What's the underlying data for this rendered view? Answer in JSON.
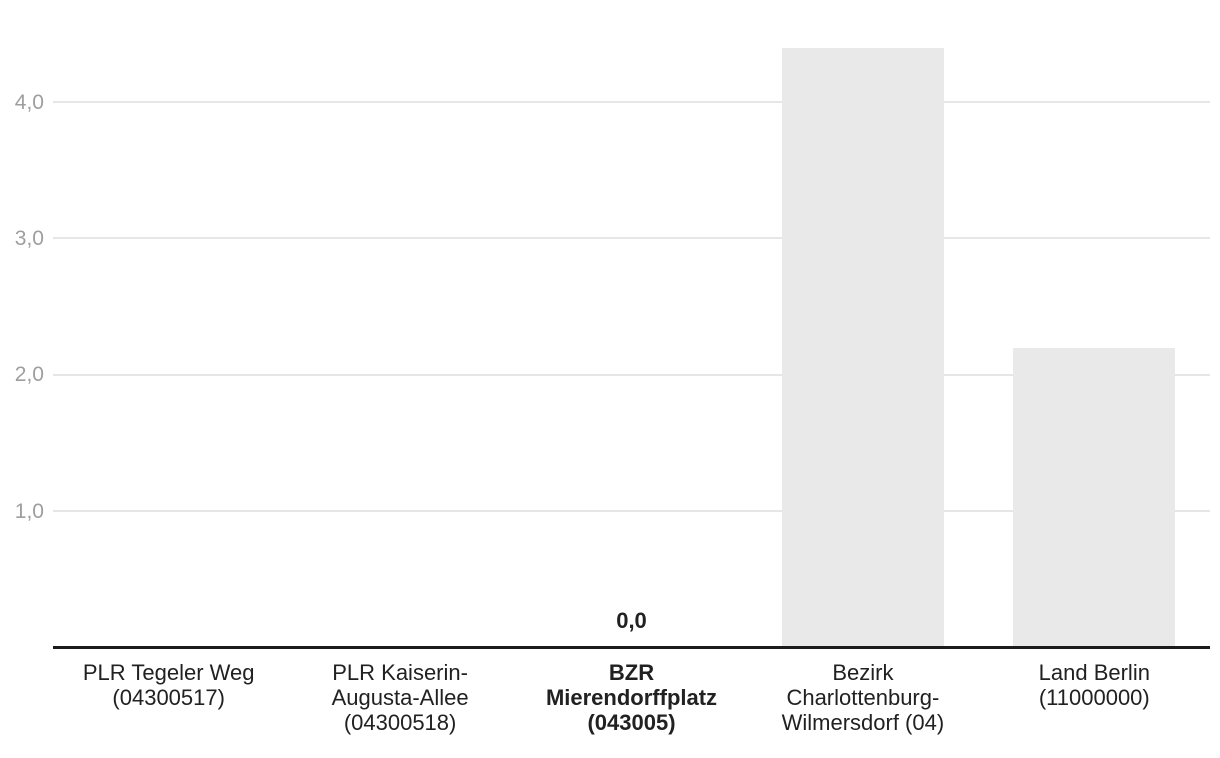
{
  "chart_data": {
    "type": "bar",
    "title": "",
    "xlabel": "",
    "ylabel": "",
    "legend": "none",
    "grid": true,
    "decimal_separator": ",",
    "ylim": [
      0,
      4.55
    ],
    "y_ticks": [
      {
        "value": 1.0,
        "label": "1,0"
      },
      {
        "value": 2.0,
        "label": "2,0"
      },
      {
        "value": 3.0,
        "label": "3,0"
      },
      {
        "value": 4.0,
        "label": "4,0"
      }
    ],
    "categories": [
      {
        "label": "PLR Tegeler Weg (04300517)",
        "lines": [
          "PLR Tegeler Weg",
          "(04300517)"
        ],
        "bold": false
      },
      {
        "label": "PLR Kaiserin-Augusta-Allee (04300518)",
        "lines": [
          "PLR Kaiserin-",
          "Augusta-Allee",
          "(04300518)"
        ],
        "bold": false
      },
      {
        "label": "BZR Mierendorffplatz (043005)",
        "lines": [
          "BZR",
          "Mierendorffplatz",
          "(043005)"
        ],
        "bold": true
      },
      {
        "label": "Bezirk Charlottenburg-Wilmersdorf (04)",
        "lines": [
          "Bezirk",
          "Charlottenburg-",
          "Wilmersdorf (04)"
        ],
        "bold": false
      },
      {
        "label": "Land Berlin (11000000)",
        "lines": [
          "Land Berlin",
          "(11000000)"
        ],
        "bold": false
      }
    ],
    "values": [
      null,
      null,
      0.0,
      4.4,
      2.2
    ],
    "bar_value_labels": [
      null,
      null,
      "0,0",
      null,
      null
    ],
    "colors": {
      "background": "#ffffff",
      "bar_fill": "#e9e9e9",
      "gridline": "#e6e6e6",
      "axis_line": "#1c1c1c",
      "tick_label": "#9e9e9e",
      "category_label": "#212121",
      "value_label": "#212121"
    }
  }
}
